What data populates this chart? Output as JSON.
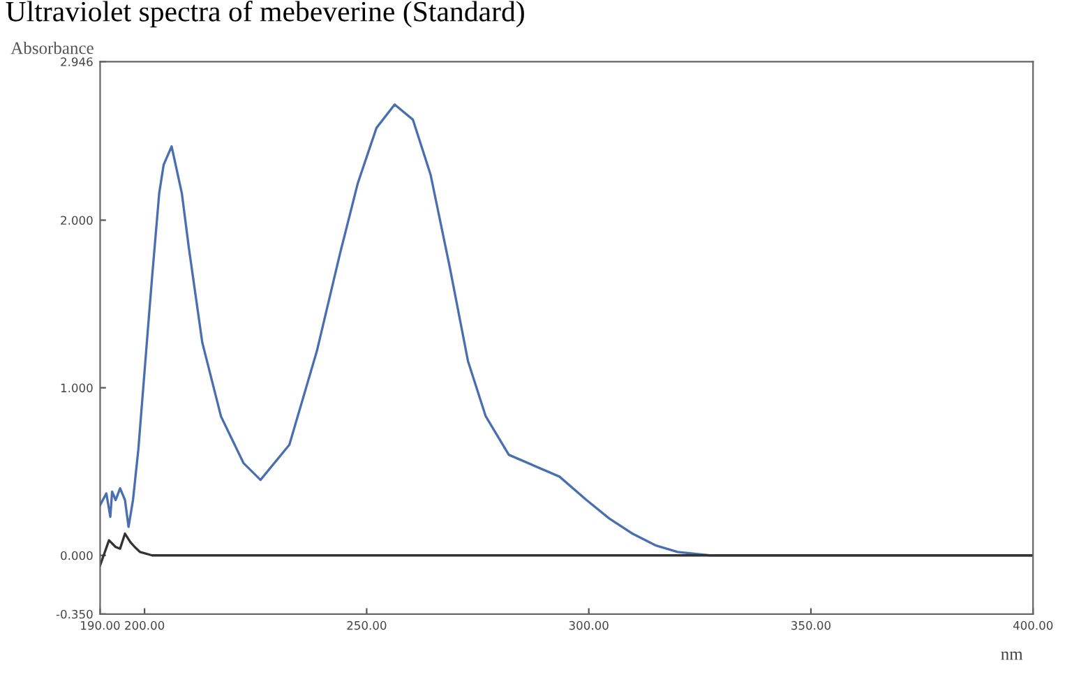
{
  "chart_data": {
    "type": "line",
    "title": "Ultraviolet spectra of mebeverine (Standard)",
    "ylabel": "Absorbance",
    "xlabel": "nm",
    "xlim": [
      190,
      400
    ],
    "ylim": [
      -0.35,
      2.946
    ],
    "xticks": [
      {
        "value": 190,
        "label": "190.00"
      },
      {
        "value": 200,
        "label": "200.00"
      },
      {
        "value": 250,
        "label": "250.00"
      },
      {
        "value": 300,
        "label": "300.00"
      },
      {
        "value": 350,
        "label": "350.00"
      },
      {
        "value": 400,
        "label": "400.00"
      }
    ],
    "yticks": [
      {
        "value": -0.35,
        "label": "-0.350"
      },
      {
        "value": 0,
        "label": "0.000"
      },
      {
        "value": 1,
        "label": "1.000"
      },
      {
        "value": 2,
        "label": "2.000"
      },
      {
        "value": 2.946,
        "label": "2.946"
      }
    ],
    "grid": false,
    "legend": false,
    "marker": "none",
    "line_style": "solid",
    "series": [
      {
        "color": "#4a6fb0",
        "x": [
          190,
          191.4,
          192.3,
          192.7,
          193.5,
          194.5,
          195.6,
          196.4,
          197.4,
          198.6,
          200.7,
          201.7,
          203.3,
          204.3,
          206.1,
          208.4,
          210,
          213,
          217.2,
          222.3,
          226.1,
          232.6,
          238.8,
          244,
          248,
          252.2,
          256.3,
          260.4,
          264.4,
          268.7,
          272.8,
          276.8,
          282,
          293.4,
          299.5,
          304.6,
          309.8,
          315,
          320,
          327.3,
          400
        ],
        "values": [
          0.3,
          0.37,
          0.23,
          0.38,
          0.33,
          0.4,
          0.33,
          0.17,
          0.33,
          0.63,
          1.33,
          1.66,
          2.16,
          2.33,
          2.44,
          2.16,
          1.83,
          1.27,
          0.83,
          0.55,
          0.45,
          0.66,
          1.22,
          1.8,
          2.22,
          2.55,
          2.69,
          2.6,
          2.27,
          1.72,
          1.16,
          0.83,
          0.6,
          0.47,
          0.33,
          0.22,
          0.13,
          0.06,
          0.02,
          0.0,
          0.0
        ]
      },
      {
        "color": "#333333",
        "x": [
          190,
          192,
          193.5,
          194.5,
          195.6,
          196.8,
          197.8,
          199,
          201.7,
          400
        ],
        "values": [
          -0.06,
          0.09,
          0.05,
          0.04,
          0.13,
          0.08,
          0.05,
          0.02,
          0.0,
          0.0
        ]
      }
    ]
  }
}
